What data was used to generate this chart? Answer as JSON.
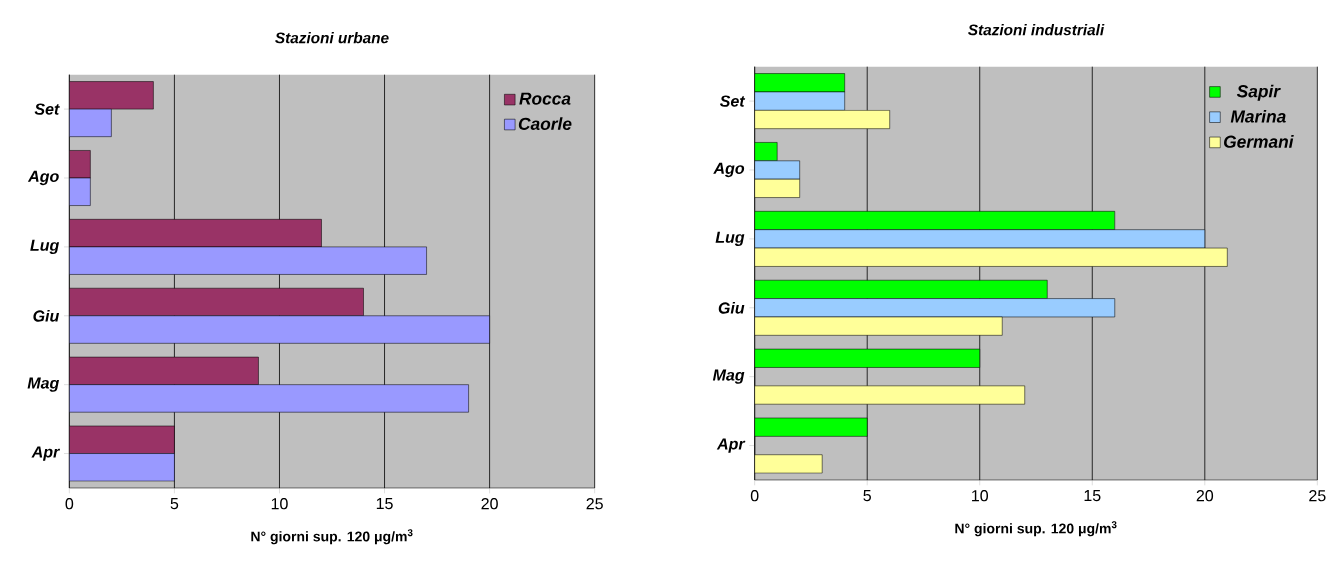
{
  "chart_data": [
    {
      "type": "bar",
      "orientation": "horizontal",
      "title": "Stazioni urbane",
      "xlabel": "N° giorni sup. 120 μg/m$^{3}$",
      "categories": [
        "Set",
        "Ago",
        "Lug",
        "Giu",
        "Mag",
        "Apr"
      ],
      "xlim": [
        0,
        25
      ],
      "xticks": [
        0,
        5,
        10,
        15,
        20,
        25
      ],
      "grid": "x",
      "legend": "top right",
      "series": [
        {
          "name": "Rocca",
          "color": "#993366",
          "values": [
            4,
            1,
            12,
            14,
            9,
            5
          ]
        },
        {
          "name": "Caorle",
          "color": "#9999ff",
          "values": [
            2,
            1,
            17,
            20,
            19,
            5
          ]
        }
      ]
    },
    {
      "type": "bar",
      "orientation": "horizontal",
      "title": "Stazioni industriali",
      "xlabel": "N° giorni sup. 120 μg/m$^{3}$",
      "categories": [
        "Set",
        "Ago",
        "Lug",
        "Giu",
        "Mag",
        "Apr"
      ],
      "xlim": [
        0,
        25
      ],
      "xticks": [
        0,
        5,
        10,
        15,
        20,
        25
      ],
      "grid": "x",
      "legend": "top right",
      "series": [
        {
          "name": "Sapir",
          "color": "#00ff00",
          "values": [
            4,
            1,
            16,
            13,
            10,
            5
          ]
        },
        {
          "name": "Marina",
          "color": "#99ccff",
          "values": [
            4,
            2,
            20,
            16,
            0,
            0
          ]
        },
        {
          "name": "Germani",
          "color": "#ffff99",
          "values": [
            6,
            2,
            21,
            11,
            12,
            3
          ]
        }
      ]
    }
  ]
}
